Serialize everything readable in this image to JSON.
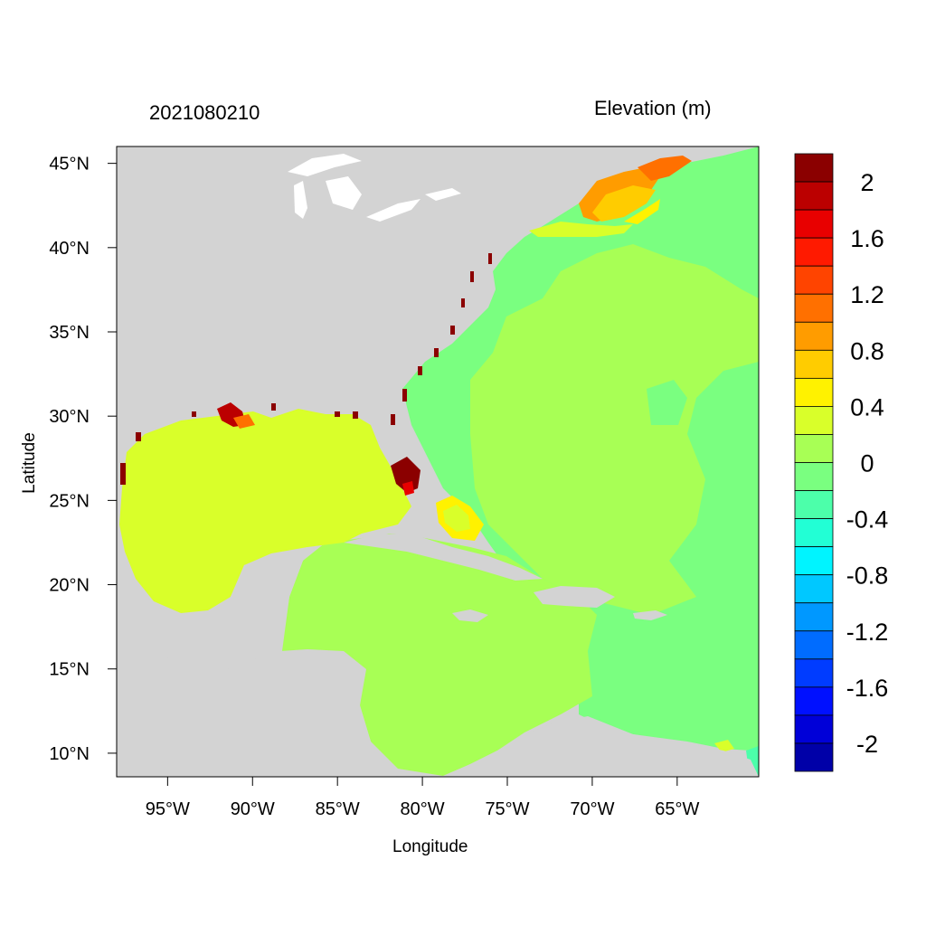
{
  "header": {
    "run_label": "2021080210",
    "variable_label": "Elevation (m)"
  },
  "axes": {
    "x_title": "Longitude",
    "y_title": "Latitude",
    "x_ticks": [
      "95°W",
      "90°W",
      "85°W",
      "80°W",
      "75°W",
      "70°W",
      "65°W"
    ],
    "x_tick_values": [
      -95,
      -90,
      -85,
      -80,
      -75,
      -70,
      -65
    ],
    "y_ticks": [
      "45°N",
      "40°N",
      "35°N",
      "30°N",
      "25°N",
      "20°N",
      "15°N",
      "10°N"
    ],
    "y_tick_values": [
      45,
      40,
      35,
      30,
      25,
      20,
      15,
      10
    ],
    "lon_range": [
      -98,
      -60.2
    ],
    "lat_range": [
      8.6,
      46
    ]
  },
  "colorbar": {
    "labels": [
      "2",
      "1.6",
      "1.2",
      "0.8",
      "0.4",
      "0",
      "-0.4",
      "-0.8",
      "-1.2",
      "-1.6",
      "-2"
    ],
    "colors": [
      "#8b0000",
      "#bb0000",
      "#e80000",
      "#ff1a00",
      "#ff4400",
      "#ff7000",
      "#ff9c00",
      "#ffcc00",
      "#fff200",
      "#d9ff2a",
      "#a8ff55",
      "#7aff80",
      "#4cffaa",
      "#22ffd5",
      "#00f4ff",
      "#00c8ff",
      "#0098ff",
      "#006cff",
      "#003cff",
      "#0010ff",
      "#0000d8",
      "#0000a8"
    ]
  },
  "map_colors": {
    "land": "#d3d3d3",
    "gulf": "#d9ff2a",
    "atlantic": "#7aff80",
    "caribbean": "#a8ff55",
    "lakes": "#ffffff"
  }
}
